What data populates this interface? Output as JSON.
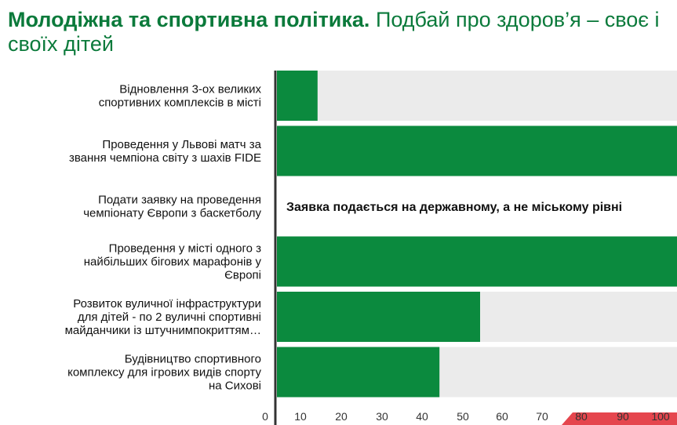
{
  "title": {
    "bold": "Молодіжна та спортивна політика.",
    "rest": "Подбай про здоров’я – своє і своїх дітей"
  },
  "colors": {
    "title": "#0b7a3b",
    "bar": "#0b8a3e",
    "track": "#ebebeb",
    "axis": "#333333",
    "accent": "#e0262f"
  },
  "chart_data": {
    "type": "bar",
    "orientation": "horizontal",
    "categories": [
      [
        "Відновлення 3-ох великих",
        "спортивних комплексів в місті"
      ],
      [
        "Проведення у Львові матч за",
        "звання чемпіона світу з шахів FIDE"
      ],
      [
        "Подати заявку на проведення",
        "чемпіонату Європи з баскетболу"
      ],
      [
        "Проведення у місті одного з",
        "найбільших бігових марафонів у",
        "Європі"
      ],
      [
        "Розвиток вуличної інфраструктури",
        "для дітей - по 2 вуличні спортивні",
        "майданчики із штучнимпокриттям…"
      ],
      [
        "Будівництво спортивного",
        "комплексу для ігрових видів спорту",
        "на Сихові"
      ]
    ],
    "values": [
      10,
      100,
      null,
      100,
      50,
      40
    ],
    "annotations": [
      {
        "category_index": 2,
        "text": "Заявка подається на державному, а не міському рівні"
      }
    ],
    "xticks": [
      "0",
      "10",
      "20",
      "30",
      "40",
      "50",
      "60",
      "70",
      "80",
      "90",
      "100"
    ],
    "xlim": [
      0,
      100
    ],
    "grid": false,
    "legend": "none"
  }
}
